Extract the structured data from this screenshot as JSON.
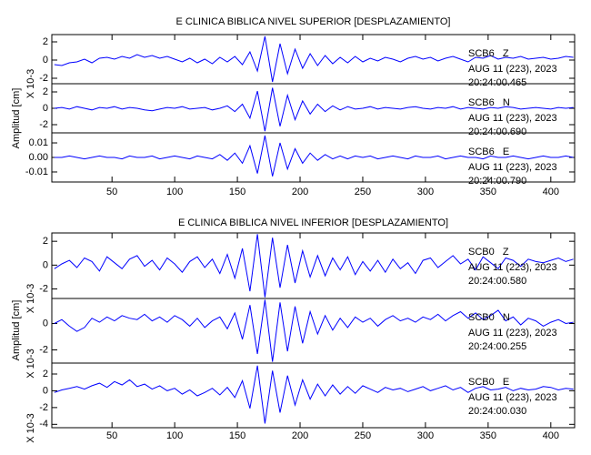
{
  "chart_data": [
    {
      "type": "line",
      "title": "E CLINICA BIBLICA NIVEL SUPERIOR [DESPLAZAMIENTO]",
      "y_label": "Amplitud [cm]",
      "color": "#0000ff",
      "xlim": [
        2,
        419
      ],
      "xticks": [
        50,
        100,
        150,
        200,
        250,
        300,
        350,
        400
      ],
      "x": [
        4,
        10,
        16,
        22,
        28,
        34,
        40,
        46,
        52,
        58,
        64,
        70,
        76,
        82,
        88,
        94,
        100,
        106,
        112,
        118,
        124,
        130,
        136,
        142,
        148,
        154,
        160,
        166,
        172,
        178,
        184,
        190,
        196,
        202,
        208,
        214,
        220,
        226,
        232,
        238,
        244,
        250,
        256,
        262,
        268,
        274,
        280,
        286,
        292,
        298,
        304,
        310,
        316,
        322,
        328,
        334,
        340,
        346,
        352,
        358,
        364,
        370,
        376,
        382,
        388,
        394,
        400,
        406,
        412,
        418
      ],
      "series": [
        {
          "name": "SCB6   Z",
          "date": "AUG 11 (223), 2023",
          "time": "20:24:00.465",
          "scale": "X 10-3",
          "ylim": [
            -2.6,
            2.8
          ],
          "yticks": [
            -2,
            0,
            2
          ],
          "values": [
            -0.5,
            -0.6,
            -0.3,
            -0.2,
            0.1,
            -0.3,
            0.2,
            0.3,
            0.1,
            0.4,
            0.2,
            0.6,
            0.3,
            0.5,
            0.2,
            0.4,
            0.1,
            -0.2,
            0.2,
            -0.3,
            0.1,
            -0.4,
            0.3,
            -0.2,
            0.4,
            -0.5,
            0.9,
            -1.2,
            2.6,
            -2.4,
            1.8,
            -1.5,
            1.2,
            -0.9,
            0.7,
            -0.6,
            0.5,
            -0.4,
            0.3,
            -0.3,
            0.4,
            -0.2,
            0.2,
            -0.1,
            0.3,
            0.1,
            -0.2,
            0.2,
            0.4,
            0.1,
            0.3,
            -0.1,
            0.2,
            0.4,
            0.1,
            -0.2,
            0.3,
            0.2,
            0.5,
            0.1,
            0.3,
            0.2,
            0.4,
            0.1,
            0.2,
            0.3,
            0.1,
            0.2,
            0.4,
            0.3
          ]
        },
        {
          "name": "SCB6   N",
          "date": "AUG 11 (223), 2023",
          "time": "20:24:00.690",
          "ylim": [
            -3.0,
            3.0
          ],
          "yticks": [
            -2,
            0,
            2
          ],
          "values": [
            0.0,
            0.1,
            -0.1,
            0.2,
            0.0,
            -0.2,
            0.1,
            0.0,
            0.2,
            -0.1,
            0.1,
            0.0,
            -0.2,
            -0.3,
            -0.1,
            0.1,
            0.0,
            0.2,
            -0.1,
            0.0,
            0.1,
            -0.2,
            0.0,
            0.3,
            -0.4,
            0.5,
            -1.2,
            2.1,
            -2.8,
            2.5,
            -2.2,
            1.6,
            -1.4,
            0.9,
            -0.7,
            0.5,
            -0.4,
            0.3,
            -0.2,
            0.2,
            -0.1,
            0.0,
            0.2,
            -0.1,
            0.1,
            0.0,
            -0.1,
            0.1,
            0.2,
            0.0,
            -0.1,
            0.1,
            0.0,
            0.2,
            -0.1,
            0.1,
            0.0,
            -0.1,
            0.1,
            0.0,
            0.2,
            0.1,
            -0.1,
            0.0,
            0.1,
            0.0,
            -0.1,
            0.1,
            0.0,
            0.1
          ]
        },
        {
          "name": "SCB6   E",
          "date": "AUG 11 (223), 2023",
          "time": "20:24:00.790",
          "ylim": [
            -0.0169,
            0.0169
          ],
          "yticks": [
            -0.01,
            {
              "value": 0,
              "label": "0.00"
            },
            0.01
          ],
          "values": [
            0.0,
            0.0,
            0.001,
            0.0,
            -0.001,
            0.0,
            0.001,
            0.0,
            0.0,
            -0.001,
            0.001,
            0.0,
            0.0,
            0.001,
            -0.001,
            0.0,
            0.001,
            0.0,
            -0.001,
            0.001,
            0.0,
            -0.001,
            0.002,
            -0.002,
            0.003,
            -0.004,
            0.008,
            -0.011,
            0.015,
            -0.013,
            0.01,
            -0.008,
            0.006,
            -0.004,
            0.003,
            -0.002,
            0.002,
            -0.001,
            0.001,
            -0.001,
            0.001,
            0.0,
            0.001,
            -0.001,
            0.0,
            0.001,
            0.0,
            -0.001,
            0.001,
            0.0,
            0.0,
            0.001,
            -0.001,
            0.0,
            0.001,
            0.0,
            0.0,
            -0.001,
            0.001,
            0.0,
            0.0,
            0.001,
            0.0,
            -0.001,
            0.0,
            0.001,
            0.0,
            0.0,
            0.001,
            0.0
          ]
        }
      ]
    },
    {
      "type": "line",
      "title": "E CLINICA BIBLICA NIVEL INFERIOR [DESPLAZAMIENTO]",
      "y_label": "Amplitud [cm]",
      "color": "#0000ff",
      "xlim": [
        2,
        419
      ],
      "xticks": [
        50,
        100,
        150,
        200,
        250,
        300,
        350,
        400
      ],
      "x": [
        4,
        10,
        16,
        22,
        28,
        34,
        40,
        46,
        52,
        58,
        64,
        70,
        76,
        82,
        88,
        94,
        100,
        106,
        112,
        118,
        124,
        130,
        136,
        142,
        148,
        154,
        160,
        166,
        172,
        178,
        184,
        190,
        196,
        202,
        208,
        214,
        220,
        226,
        232,
        238,
        244,
        250,
        256,
        262,
        268,
        274,
        280,
        286,
        292,
        298,
        304,
        310,
        316,
        322,
        328,
        334,
        340,
        346,
        352,
        358,
        364,
        370,
        376,
        382,
        388,
        394,
        400,
        406,
        412,
        418
      ],
      "series": [
        {
          "name": "SCB0   Z",
          "date": "AUG 11 (223), 2023",
          "time": "20:24:00.580",
          "scale": "X 10-3",
          "ylim": [
            -2.8,
            2.7
          ],
          "yticks": [
            -2,
            0,
            2
          ],
          "values": [
            -0.3,
            0.1,
            0.4,
            -0.2,
            0.6,
            0.3,
            -0.5,
            0.7,
            0.2,
            -0.3,
            0.5,
            0.8,
            -0.1,
            0.4,
            -0.4,
            0.6,
            0.1,
            -0.6,
            0.3,
            0.7,
            -0.2,
            0.5,
            -0.7,
            0.9,
            -1.1,
            1.4,
            -2.2,
            2.6,
            -2.7,
            2.3,
            -1.9,
            1.7,
            -1.5,
            1.2,
            -1.0,
            0.8,
            -0.9,
            0.6,
            -0.4,
            0.7,
            -0.8,
            0.3,
            -0.5,
            0.4,
            -0.6,
            0.5,
            -0.3,
            0.2,
            -0.7,
            0.4,
            0.6,
            -0.2,
            0.3,
            0.8,
            0.1,
            0.5,
            -0.4,
            0.7,
            0.2,
            -0.3,
            0.6,
            0.4,
            -0.1,
            0.5,
            0.3,
            0.2,
            0.4,
            0.6,
            0.3,
            0.5
          ]
        },
        {
          "name": "SCB0   N",
          "date": "AUG 11 (223), 2023",
          "time": "20:24:00.255",
          "scale": "X 10-3",
          "ylim": [
            -3.0,
            1.9
          ],
          "yticks": [
            -2,
            0
          ],
          "values": [
            0.0,
            0.3,
            -0.2,
            -0.6,
            -0.3,
            0.4,
            0.1,
            0.5,
            0.2,
            0.6,
            0.4,
            0.3,
            0.7,
            0.2,
            0.5,
            0.1,
            0.6,
            0.3,
            -0.2,
            0.4,
            -0.3,
            0.2,
            0.5,
            -0.4,
            0.8,
            -1.2,
            1.4,
            -2.3,
            1.8,
            -2.9,
            1.6,
            -2.1,
            1.3,
            -1.5,
            0.9,
            -0.8,
            0.6,
            -0.5,
            0.4,
            -0.3,
            0.5,
            0.1,
            0.4,
            -0.2,
            0.3,
            0.6,
            0.2,
            0.4,
            0.1,
            0.5,
            0.3,
            0.7,
            0.2,
            0.6,
            0.9,
            0.4,
            0.8,
            0.3,
            0.6,
            1.0,
            0.2,
            0.5,
            -0.1,
            0.4,
            0.2,
            -0.2,
            0.1,
            0.3,
            0.0,
            0.1
          ]
        },
        {
          "name": "SCB0   E",
          "date": "AUG 11 (223), 2023",
          "time": "20:24:00.030",
          "scale": "X 10-3",
          "ylim": [
            -4.4,
            3.3
          ],
          "yticks": [
            -4,
            -2,
            0,
            2
          ],
          "values": [
            -0.2,
            0.1,
            0.3,
            0.5,
            0.2,
            0.6,
            0.9,
            0.4,
            1.1,
            0.7,
            1.3,
            0.5,
            0.8,
            0.2,
            0.6,
            0.0,
            0.3,
            -0.4,
            0.1,
            -0.6,
            -0.2,
            0.3,
            -0.5,
            0.4,
            -0.8,
            1.2,
            -2.1,
            3.0,
            -3.9,
            2.4,
            -2.6,
            1.8,
            -1.7,
            1.3,
            -1.0,
            0.8,
            -0.6,
            0.7,
            -0.4,
            0.5,
            -0.3,
            0.6,
            0.2,
            -0.2,
            0.4,
            0.1,
            0.3,
            -0.1,
            0.2,
            0.5,
            0.0,
            0.3,
            0.6,
            0.1,
            0.4,
            -0.2,
            0.3,
            0.5,
            0.1,
            0.2,
            0.4,
            0.0,
            0.3,
            0.1,
            0.2,
            0.5,
            0.4,
            0.1,
            0.3,
            0.2
          ]
        }
      ]
    }
  ]
}
